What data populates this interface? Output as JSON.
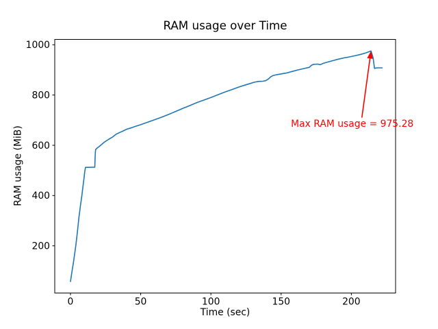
{
  "figure": {
    "background": "#ffffff"
  },
  "chart_data": {
    "type": "line",
    "title": "RAM usage over Time",
    "xlabel": "Time (sec)",
    "ylabel": "RAM usage (MiB)",
    "xticks": [
      0,
      50,
      100,
      150,
      200
    ],
    "yticks": [
      200,
      400,
      600,
      800,
      1000
    ],
    "xlim": [
      -11.2,
      231.5
    ],
    "ylim": [
      12.8,
      1021
    ],
    "grid": false,
    "legend": null,
    "max_value": 975.28,
    "line_color": "#1f77b4",
    "series": [
      {
        "name": "RAM usage",
        "points": [
          [
            0,
            58
          ],
          [
            1,
            95
          ],
          [
            2,
            130
          ],
          [
            3,
            168
          ],
          [
            4,
            210
          ],
          [
            5,
            258
          ],
          [
            6,
            312
          ],
          [
            7,
            355
          ],
          [
            8,
            395
          ],
          [
            9,
            440
          ],
          [
            9.6,
            468
          ],
          [
            10.1,
            492
          ],
          [
            10.7,
            512
          ],
          [
            17.3,
            513
          ],
          [
            17.6,
            560
          ],
          [
            17.9,
            583
          ],
          [
            19,
            589
          ],
          [
            21,
            598
          ],
          [
            24,
            612
          ],
          [
            27,
            623
          ],
          [
            30,
            633
          ],
          [
            32.5,
            644
          ],
          [
            35,
            651
          ],
          [
            37.5,
            657
          ],
          [
            40,
            664
          ],
          [
            43,
            669
          ],
          [
            46,
            675
          ],
          [
            50,
            682
          ],
          [
            55,
            692
          ],
          [
            60,
            702
          ],
          [
            65,
            712
          ],
          [
            70,
            723
          ],
          [
            75,
            735
          ],
          [
            80,
            747
          ],
          [
            85,
            758
          ],
          [
            90,
            770
          ],
          [
            95,
            780
          ],
          [
            100,
            790
          ],
          [
            105,
            801
          ],
          [
            110,
            812
          ],
          [
            115,
            822
          ],
          [
            120,
            832
          ],
          [
            124,
            839
          ],
          [
            128,
            846
          ],
          [
            131,
            851
          ],
          [
            134,
            854
          ],
          [
            137,
            855
          ],
          [
            139,
            857
          ],
          [
            141,
            864
          ],
          [
            142.5,
            872
          ],
          [
            144,
            877
          ],
          [
            147,
            881
          ],
          [
            150,
            884
          ],
          [
            154,
            888
          ],
          [
            158,
            894
          ],
          [
            162,
            900
          ],
          [
            166,
            905
          ],
          [
            170,
            910
          ],
          [
            171.5,
            918
          ],
          [
            173,
            922
          ],
          [
            176,
            923
          ],
          [
            178,
            921
          ],
          [
            180,
            926
          ],
          [
            183,
            931
          ],
          [
            187,
            937
          ],
          [
            191,
            943
          ],
          [
            195,
            948
          ],
          [
            199,
            952
          ],
          [
            203,
            957
          ],
          [
            207,
            962
          ],
          [
            210,
            967
          ],
          [
            212,
            971
          ],
          [
            214,
            975.28
          ],
          [
            215.5,
            948
          ],
          [
            216.5,
            906
          ],
          [
            218,
            908
          ],
          [
            222,
            908
          ]
        ]
      }
    ],
    "annotation": {
      "text": "Max RAM usage = 975.28",
      "color": "#ff0000",
      "xy": [
        214,
        975.28
      ],
      "arrow_tail": [
        207.5,
        710
      ],
      "text_xy": [
        157,
        668
      ]
    }
  }
}
